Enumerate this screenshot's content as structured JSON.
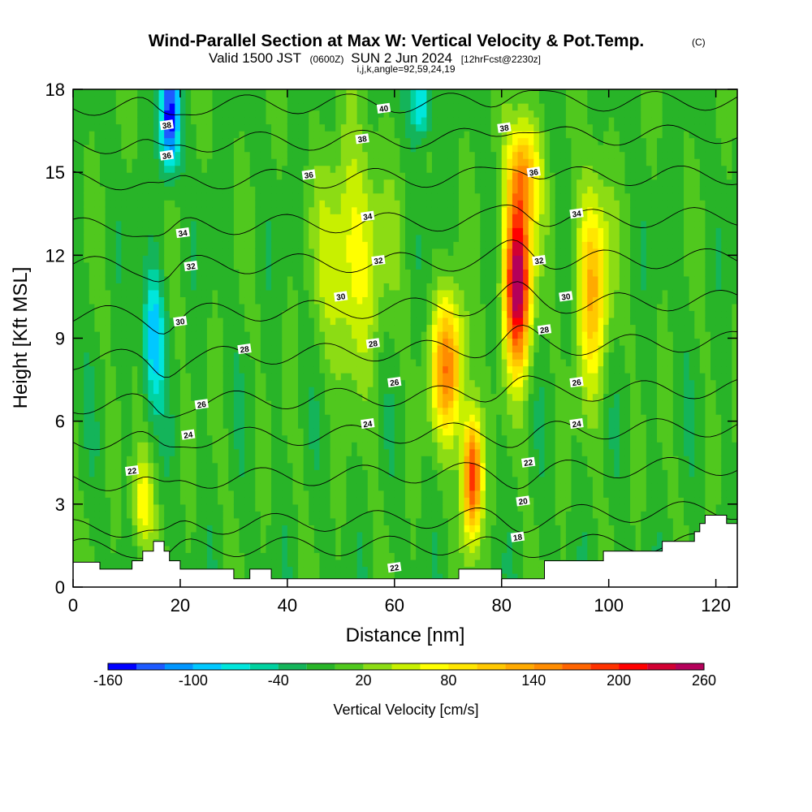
{
  "title": {
    "main": "Wind-Parallel Section at Max W: Vertical Velocity & Pot.Temp.",
    "copyright": "(C)",
    "valid_prefix": "Valid 1500 JST",
    "valid_utc": "(0600Z)",
    "valid_date": "SUN 2 Jun 2024",
    "forecast": "[12hrFcst@2230z]",
    "indices": "i,j,k,angle=92,59,24,19"
  },
  "chart_data": {
    "type": "heatmap",
    "xlabel": "Distance [nm]",
    "ylabel": "Height [Kft MSL]",
    "xlim": [
      0,
      124
    ],
    "ylim": [
      0,
      18
    ],
    "x_ticks": [
      "0",
      "20",
      "40",
      "60",
      "80",
      "100",
      "120"
    ],
    "x_tick_values": [
      0,
      20,
      40,
      60,
      80,
      100,
      120
    ],
    "y_ticks": [
      "0",
      "3",
      "6",
      "9",
      "12",
      "15",
      "18"
    ],
    "y_tick_values": [
      0,
      3,
      6,
      9,
      12,
      15,
      18
    ],
    "colorbar": {
      "title": "Vertical Velocity [cm/s]",
      "range": [
        -160,
        260
      ],
      "step": 20,
      "labels": [
        "-160",
        "-100",
        "-40",
        "20",
        "80",
        "140",
        "200",
        "260"
      ],
      "label_values": [
        -160,
        -100,
        -40,
        20,
        80,
        140,
        200,
        260
      ],
      "colors": [
        "#0000ff",
        "#1e5aff",
        "#0096ff",
        "#00c8ff",
        "#00e6dc",
        "#00d2a0",
        "#14b45a",
        "#28b428",
        "#50c81e",
        "#8cdc14",
        "#c8f000",
        "#ffff00",
        "#ffe600",
        "#ffc800",
        "#ffaa00",
        "#ff8c00",
        "#ff6400",
        "#ff3200",
        "#ff0000",
        "#d20032",
        "#b4005a",
        "#960082"
      ]
    },
    "updraft_cores": [
      {
        "x": 83,
        "y": 11,
        "w": 260
      },
      {
        "x": 74.5,
        "y": 4,
        "w": 200
      },
      {
        "x": 70,
        "y": 8,
        "w": 150
      },
      {
        "x": 97,
        "y": 11,
        "w": 120
      },
      {
        "x": 84,
        "y": 15,
        "w": 120
      },
      {
        "x": 52,
        "y": 12,
        "w": 70
      },
      {
        "x": 13,
        "y": 3,
        "w": 70
      }
    ],
    "downdraft_cores": [
      {
        "x": 18,
        "y": 17,
        "w": -160
      },
      {
        "x": 15,
        "y": 9,
        "w": -100
      },
      {
        "x": 65,
        "y": 17.5,
        "w": -100
      }
    ],
    "theta_contours": [
      {
        "value": 18,
        "y_left": 1.4,
        "y_right": 1.6
      },
      {
        "value": 20,
        "y_left": 2.1,
        "y_right": 2.8
      },
      {
        "value": 22,
        "y_left": 3.8,
        "y_right": 4.4
      },
      {
        "value": 24,
        "y_left": 5.3,
        "y_right": 5.8
      },
      {
        "value": 26,
        "y_left": 6.6,
        "y_right": 7.2
      },
      {
        "value": 28,
        "y_left": 8.2,
        "y_right": 8.9
      },
      {
        "value": 30,
        "y_left": 9.8,
        "y_right": 10.4
      },
      {
        "value": 32,
        "y_left": 11.6,
        "y_right": 11.9
      },
      {
        "value": 34,
        "y_left": 13.0,
        "y_right": 13.4
      },
      {
        "value": 36,
        "y_left": 14.7,
        "y_right": 14.9
      },
      {
        "value": 38,
        "y_left": 16.0,
        "y_right": 16.4
      },
      {
        "value": 40,
        "y_left": 17.4,
        "y_right": 17.6
      }
    ],
    "contour_labels": [
      {
        "text": "40",
        "x": 58,
        "y": 17.3
      },
      {
        "text": "38",
        "x": 54,
        "y": 16.2
      },
      {
        "text": "38",
        "x": 80.5,
        "y": 16.6
      },
      {
        "text": "38",
        "x": 17.5,
        "y": 16.7
      },
      {
        "text": "36",
        "x": 44,
        "y": 14.9
      },
      {
        "text": "36",
        "x": 86,
        "y": 15.0
      },
      {
        "text": "36",
        "x": 17.5,
        "y": 15.6
      },
      {
        "text": "34",
        "x": 55,
        "y": 13.4
      },
      {
        "text": "34",
        "x": 94,
        "y": 13.5
      },
      {
        "text": "34",
        "x": 20.5,
        "y": 12.8
      },
      {
        "text": "32",
        "x": 57,
        "y": 11.8
      },
      {
        "text": "32",
        "x": 87,
        "y": 11.8
      },
      {
        "text": "32",
        "x": 22,
        "y": 11.6
      },
      {
        "text": "30",
        "x": 50,
        "y": 10.5
      },
      {
        "text": "30",
        "x": 92,
        "y": 10.5
      },
      {
        "text": "30",
        "x": 20,
        "y": 9.6
      },
      {
        "text": "28",
        "x": 56,
        "y": 8.8
      },
      {
        "text": "28",
        "x": 88,
        "y": 9.3
      },
      {
        "text": "28",
        "x": 32,
        "y": 8.6
      },
      {
        "text": "26",
        "x": 60,
        "y": 7.4
      },
      {
        "text": "26",
        "x": 94,
        "y": 7.4
      },
      {
        "text": "26",
        "x": 24,
        "y": 6.6
      },
      {
        "text": "24",
        "x": 55,
        "y": 5.9
      },
      {
        "text": "24",
        "x": 94,
        "y": 5.9
      },
      {
        "text": "24",
        "x": 21.5,
        "y": 5.5
      },
      {
        "text": "22",
        "x": 85,
        "y": 4.5
      },
      {
        "text": "22",
        "x": 11,
        "y": 4.2
      },
      {
        "text": "20",
        "x": 84,
        "y": 3.1
      },
      {
        "text": "18",
        "x": 83,
        "y": 1.8
      },
      {
        "text": "22",
        "x": 60,
        "y": 0.7
      }
    ],
    "terrain": [
      [
        0,
        0.9
      ],
      [
        5,
        0.9
      ],
      [
        5,
        0.65
      ],
      [
        11,
        0.65
      ],
      [
        11,
        0.95
      ],
      [
        13,
        0.95
      ],
      [
        13,
        1.3
      ],
      [
        15,
        1.3
      ],
      [
        15,
        1.65
      ],
      [
        17,
        1.65
      ],
      [
        17,
        1.3
      ],
      [
        18,
        1.3
      ],
      [
        18,
        0.95
      ],
      [
        20,
        0.95
      ],
      [
        20,
        0.65
      ],
      [
        30,
        0.65
      ],
      [
        30,
        0.3
      ],
      [
        33,
        0.3
      ],
      [
        33,
        0.65
      ],
      [
        37,
        0.65
      ],
      [
        37,
        0.3
      ],
      [
        72,
        0.3
      ],
      [
        72,
        0.65
      ],
      [
        80,
        0.65
      ],
      [
        80,
        0.3
      ],
      [
        88,
        0.3
      ],
      [
        88,
        0.95
      ],
      [
        99,
        0.95
      ],
      [
        99,
        1.3
      ],
      [
        110,
        1.3
      ],
      [
        110,
        1.65
      ],
      [
        116,
        1.65
      ],
      [
        116,
        2.0
      ],
      [
        117,
        2.0
      ],
      [
        117,
        2.3
      ],
      [
        118,
        2.3
      ],
      [
        118,
        2.6
      ],
      [
        122,
        2.6
      ],
      [
        122,
        2.3
      ],
      [
        124,
        2.3
      ]
    ]
  }
}
